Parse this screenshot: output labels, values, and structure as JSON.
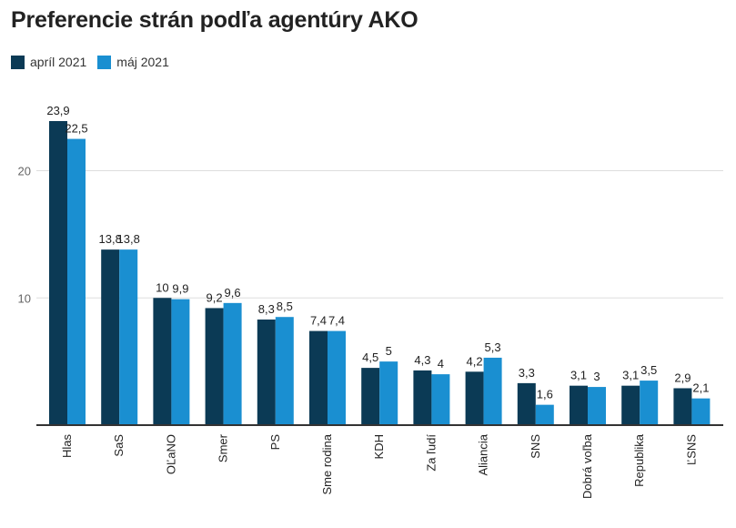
{
  "chart_data": {
    "type": "bar",
    "title": "Preferencie strán podľa agentúry AKO",
    "xlabel": "",
    "ylabel": "",
    "ylim": [
      0,
      24
    ],
    "yticks": [
      10,
      20
    ],
    "grid": true,
    "legend_position": "top-left",
    "categories": [
      "Hlas",
      "SaS",
      "OĽaNO",
      "Smer",
      "PS",
      "Sme rodina",
      "KDH",
      "Za ľudí",
      "Aliancia",
      "SNS",
      "Dobrá voľba",
      "Republika",
      "ĽSNS"
    ],
    "series": [
      {
        "name": "apríl 2021",
        "color": "#0b3a55",
        "values": [
          23.9,
          13.8,
          10,
          9.2,
          8.3,
          7.4,
          4.5,
          4.3,
          4.2,
          3.3,
          3.1,
          3.1,
          2.9
        ],
        "labels": [
          "23,9",
          "13,8",
          "10",
          "9,2",
          "8,3",
          "7,4",
          "4,5",
          "4,3",
          "4,2",
          "3,3",
          "3,1",
          "3,1",
          "2,9"
        ]
      },
      {
        "name": "máj 2021",
        "color": "#1a8fd1",
        "values": [
          22.5,
          13.8,
          9.9,
          9.6,
          8.5,
          7.4,
          5,
          4,
          5.3,
          1.6,
          3,
          3.5,
          2.1
        ],
        "labels": [
          "22,5",
          "13,8",
          "9,9",
          "9,6",
          "8,5",
          "7,4",
          "5",
          "4",
          "5,3",
          "1,6",
          "3",
          "3,5",
          "2,1"
        ]
      }
    ]
  }
}
